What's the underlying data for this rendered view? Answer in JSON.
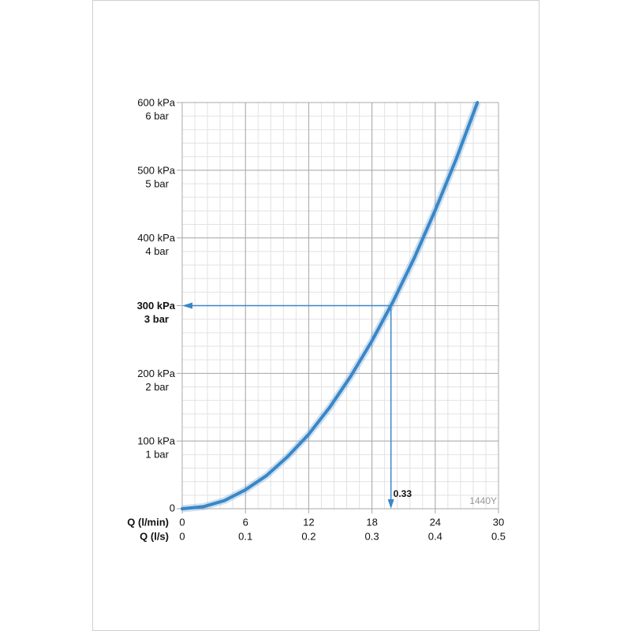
{
  "chart_data": {
    "type": "line",
    "x_label": "Q (l/min)",
    "x2_label": "Q (l/s)",
    "xlim": [
      0,
      30
    ],
    "xticks": [
      0,
      6,
      12,
      18,
      24,
      30
    ],
    "x2lim": [
      0,
      0.5
    ],
    "x2ticks": [
      0,
      0.1,
      0.2,
      0.3,
      0.4,
      0.5
    ],
    "ylim": [
      0,
      600
    ],
    "yticks": [
      0,
      {
        "value": 100,
        "label": "100 kPa"
      },
      {
        "value": 200,
        "label": "200 kPa"
      },
      {
        "value": 300,
        "label": "300 kPa"
      },
      {
        "value": 400,
        "label": "400 kPa"
      },
      {
        "value": 500,
        "label": "500 kPa"
      },
      {
        "value": 600,
        "label": "600 kPa"
      }
    ],
    "y2lim": [
      0,
      6
    ],
    "y2ticks": [
      {
        "value": 1,
        "label": "1 bar"
      },
      {
        "value": 2,
        "label": "2 bar"
      },
      {
        "value": 3,
        "label": "3 bar"
      },
      {
        "value": 4,
        "label": "4 bar"
      },
      {
        "value": 5,
        "label": "5 bar"
      },
      {
        "value": 6,
        "label": "6 bar"
      }
    ],
    "highlight_y": 300,
    "grid": true,
    "minor_grid": true,
    "series": [
      {
        "name": "1440Y",
        "color": "#3a86c8",
        "x": [
          0,
          2,
          4,
          6,
          8,
          10,
          12,
          14,
          16,
          18,
          20,
          22,
          24,
          26,
          28
        ],
        "values": [
          0,
          3,
          12,
          28,
          49,
          77,
          110,
          150,
          196,
          248,
          306,
          370,
          441,
          517,
          600
        ]
      }
    ],
    "annotation": {
      "x": 0.33,
      "y": 300,
      "label": "0.33"
    }
  }
}
